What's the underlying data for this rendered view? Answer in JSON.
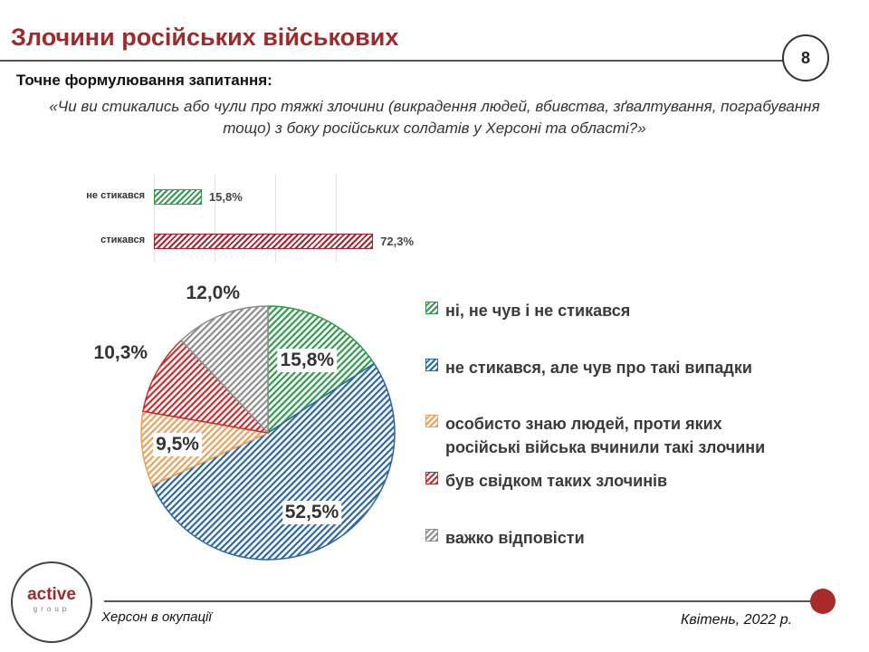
{
  "header": {
    "title": "Злочини російських військових",
    "page_number": "8",
    "question_label": "Точне формулювання запитання:",
    "question_text": "«Чи ви стикались або чули про тяжкі злочини (викрадення людей, вбивства, зґвалтування, пограбування тощо) з боку російських солдатів у Херсоні та області?»"
  },
  "chart_data": [
    {
      "type": "bar",
      "orientation": "horizontal",
      "categories": [
        "не стикався",
        "стикався"
      ],
      "values": [
        15.8,
        72.3
      ],
      "value_labels": [
        "15,8%",
        "72,3%"
      ],
      "colors": [
        "#2f9b4a",
        "#b01e2c"
      ],
      "xlim": [
        0,
        100
      ],
      "grid": true
    },
    {
      "type": "pie",
      "categories": [
        "ні, не чув і не стикався",
        "не стикався, але чув про такі випадки",
        "особисто знаю людей, проти яких російські війська вчинили такі злочини",
        "був свідком таких злочинів",
        "важко відповісти"
      ],
      "values": [
        15.8,
        52.5,
        9.5,
        10.3,
        12.0
      ],
      "value_labels": [
        "15,8%",
        "52,5%",
        "9,5%",
        "10,3%",
        "12,0%"
      ],
      "colors": [
        "#2f9b4a",
        "#2a66a8",
        "#e8a05a",
        "#cc2a2a",
        "#8c8c8c"
      ],
      "legend_placement": "right",
      "legend": [
        {
          "lines": [
            "ні, не чув і не стикався"
          ]
        },
        {
          "lines": [
            "не стикався, але чув про такі випадки"
          ]
        },
        {
          "lines": [
            "особисто знаю людей, проти яких",
            "російські війська вчинили такі злочини"
          ]
        },
        {
          "lines": [
            "був свідком таких злочинів"
          ]
        },
        {
          "lines": [
            "важко відповісти"
          ]
        }
      ]
    }
  ],
  "footer": {
    "left": "Херсон в окупації",
    "right": "Квітень, 2022 р.",
    "logo_main": "active",
    "logo_sub": "group"
  }
}
